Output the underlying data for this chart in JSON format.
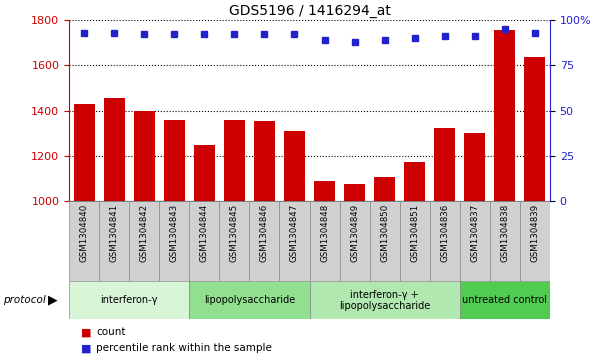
{
  "title": "GDS5196 / 1416294_at",
  "samples": [
    "GSM1304840",
    "GSM1304841",
    "GSM1304842",
    "GSM1304843",
    "GSM1304844",
    "GSM1304845",
    "GSM1304846",
    "GSM1304847",
    "GSM1304848",
    "GSM1304849",
    "GSM1304850",
    "GSM1304851",
    "GSM1304836",
    "GSM1304837",
    "GSM1304838",
    "GSM1304839"
  ],
  "counts": [
    1430,
    1455,
    1400,
    1360,
    1250,
    1360,
    1355,
    1310,
    1090,
    1075,
    1110,
    1175,
    1325,
    1300,
    1755,
    1635
  ],
  "percentiles": [
    93,
    93,
    92,
    92,
    92,
    92,
    92,
    92,
    89,
    88,
    89,
    90,
    91,
    91,
    95,
    93
  ],
  "bar_color": "#cc0000",
  "dot_color": "#2222cc",
  "ylim_left": [
    1000,
    1800
  ],
  "ylim_right": [
    0,
    100
  ],
  "yticks_left": [
    1000,
    1200,
    1400,
    1600,
    1800
  ],
  "yticks_right": [
    0,
    25,
    50,
    75,
    100
  ],
  "groups": [
    {
      "label": "interferon-γ",
      "start": 0,
      "end": 4,
      "color": "#d8f5d8"
    },
    {
      "label": "lipopolysaccharide",
      "start": 4,
      "end": 8,
      "color": "#90e090"
    },
    {
      "label": "interferon-γ +\nlipopolysaccharide",
      "start": 8,
      "end": 13,
      "color": "#b0e8b0"
    },
    {
      "label": "untreated control",
      "start": 13,
      "end": 16,
      "color": "#50cc50"
    }
  ],
  "label_box_color": "#d0d0d0",
  "tick_label_color": "#cc0000",
  "right_tick_color": "#2222cc",
  "legend_count_color": "#cc0000",
  "legend_percentile_color": "#2222cc"
}
